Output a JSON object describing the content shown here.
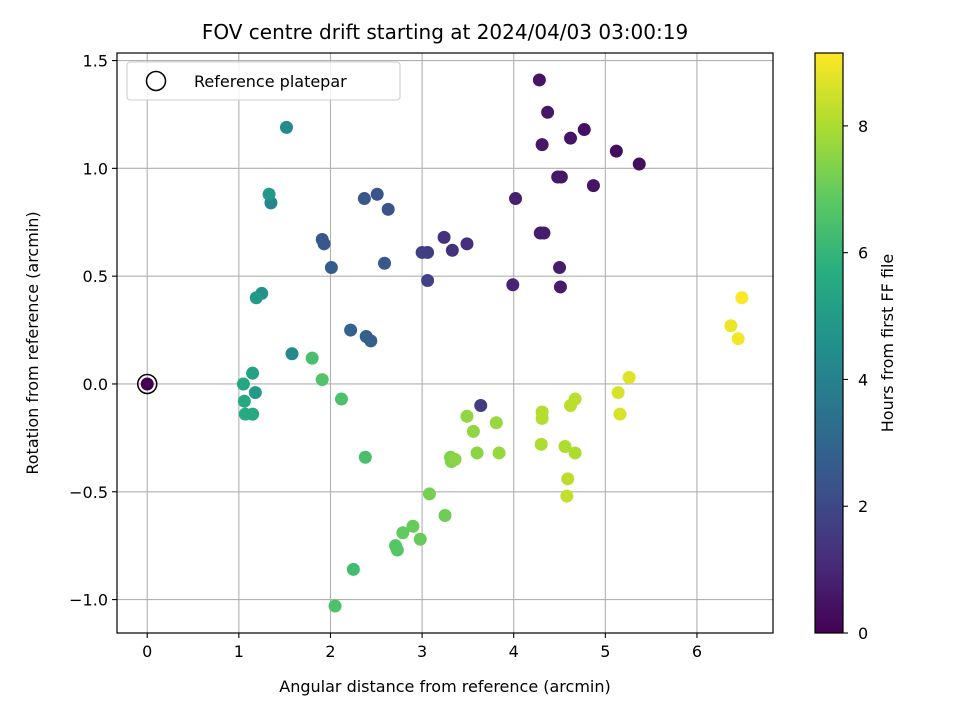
{
  "chart_data": {
    "type": "scatter",
    "title": "FOV centre drift starting at 2024/04/03 03:00:19",
    "xlabel": "Angular distance from reference (arcmin)",
    "ylabel": "Rotation from reference (arcmin)",
    "xlim": [
      -0.33,
      6.83
    ],
    "ylim": [
      -1.155,
      1.535
    ],
    "xticks": [
      0,
      1,
      2,
      3,
      4,
      5,
      6
    ],
    "yticks": [
      -1.0,
      -0.5,
      0.0,
      0.5,
      1.0,
      1.5
    ],
    "xtick_labels": [
      "0",
      "1",
      "2",
      "3",
      "4",
      "5",
      "6"
    ],
    "ytick_labels": [
      "−1.0",
      "−0.5",
      "0.0",
      "0.5",
      "1.0",
      "1.5"
    ],
    "grid": true,
    "colormap": "viridis",
    "colorbar": {
      "label": "Hours from first FF file",
      "min": 0,
      "max": 9.15,
      "ticks": [
        0,
        2,
        4,
        6,
        8
      ],
      "tick_labels": [
        "0",
        "2",
        "4",
        "6",
        "8"
      ]
    },
    "legend": {
      "placement": "upper-left",
      "entries": [
        "Reference platepar"
      ]
    },
    "reference_point": {
      "x": 0.0,
      "y": 0.0
    },
    "points": [
      {
        "x": 4.28,
        "y": 1.41,
        "c": 0.5
      },
      {
        "x": 4.37,
        "y": 1.26,
        "c": 0.6
      },
      {
        "x": 4.31,
        "y": 1.11,
        "c": 0.6
      },
      {
        "x": 4.62,
        "y": 1.14,
        "c": 0.5
      },
      {
        "x": 4.77,
        "y": 1.18,
        "c": 0.4
      },
      {
        "x": 5.12,
        "y": 1.08,
        "c": 0.3
      },
      {
        "x": 5.37,
        "y": 1.02,
        "c": 0.3
      },
      {
        "x": 4.48,
        "y": 0.96,
        "c": 0.6
      },
      {
        "x": 4.52,
        "y": 0.96,
        "c": 0.6
      },
      {
        "x": 4.87,
        "y": 0.92,
        "c": 0.5
      },
      {
        "x": 4.02,
        "y": 0.86,
        "c": 0.8
      },
      {
        "x": 4.29,
        "y": 0.7,
        "c": 0.7
      },
      {
        "x": 4.33,
        "y": 0.7,
        "c": 0.7
      },
      {
        "x": 4.5,
        "y": 0.54,
        "c": 0.7
      },
      {
        "x": 4.51,
        "y": 0.45,
        "c": 0.7
      },
      {
        "x": 3.99,
        "y": 0.46,
        "c": 0.9
      },
      {
        "x": 3.24,
        "y": 0.68,
        "c": 1.3
      },
      {
        "x": 3.33,
        "y": 0.62,
        "c": 1.3
      },
      {
        "x": 3.49,
        "y": 0.65,
        "c": 1.2
      },
      {
        "x": 3.06,
        "y": 0.61,
        "c": 1.6
      },
      {
        "x": 3.0,
        "y": 0.61,
        "c": 1.7
      },
      {
        "x": 3.06,
        "y": 0.48,
        "c": 1.8
      },
      {
        "x": 3.64,
        "y": -0.1,
        "c": 1.6
      },
      {
        "x": 2.51,
        "y": 0.88,
        "c": 2.4
      },
      {
        "x": 2.37,
        "y": 0.86,
        "c": 2.5
      },
      {
        "x": 2.63,
        "y": 0.81,
        "c": 2.3
      },
      {
        "x": 1.91,
        "y": 0.67,
        "c": 2.5
      },
      {
        "x": 1.93,
        "y": 0.65,
        "c": 2.5
      },
      {
        "x": 2.01,
        "y": 0.54,
        "c": 2.6
      },
      {
        "x": 2.59,
        "y": 0.56,
        "c": 2.5
      },
      {
        "x": 2.22,
        "y": 0.25,
        "c": 2.9
      },
      {
        "x": 2.39,
        "y": 0.22,
        "c": 2.8
      },
      {
        "x": 2.44,
        "y": 0.2,
        "c": 2.8
      },
      {
        "x": 1.52,
        "y": 1.19,
        "c": 4.3
      },
      {
        "x": 1.35,
        "y": 0.84,
        "c": 4.2
      },
      {
        "x": 1.33,
        "y": 0.88,
        "c": 4.9
      },
      {
        "x": 1.58,
        "y": 0.14,
        "c": 4.3
      },
      {
        "x": 1.25,
        "y": 0.42,
        "c": 4.6
      },
      {
        "x": 1.19,
        "y": 0.4,
        "c": 4.9
      },
      {
        "x": 1.15,
        "y": 0.05,
        "c": 5.2
      },
      {
        "x": 1.05,
        "y": 0.0,
        "c": 5.4
      },
      {
        "x": 1.18,
        "y": -0.04,
        "c": 4.9
      },
      {
        "x": 1.06,
        "y": -0.08,
        "c": 5.5
      },
      {
        "x": 1.07,
        "y": -0.14,
        "c": 5.6
      },
      {
        "x": 1.15,
        "y": -0.14,
        "c": 5.5
      },
      {
        "x": 1.8,
        "y": 0.12,
        "c": 6.4
      },
      {
        "x": 1.91,
        "y": 0.02,
        "c": 6.6
      },
      {
        "x": 2.12,
        "y": -0.07,
        "c": 6.5
      },
      {
        "x": 2.38,
        "y": -0.34,
        "c": 6.4
      },
      {
        "x": 2.25,
        "y": -0.86,
        "c": 6.3
      },
      {
        "x": 2.05,
        "y": -1.03,
        "c": 6.5
      },
      {
        "x": 2.71,
        "y": -0.75,
        "c": 6.7
      },
      {
        "x": 2.73,
        "y": -0.77,
        "c": 6.7
      },
      {
        "x": 2.79,
        "y": -0.69,
        "c": 6.9
      },
      {
        "x": 2.9,
        "y": -0.66,
        "c": 7.0
      },
      {
        "x": 2.98,
        "y": -0.72,
        "c": 7.0
      },
      {
        "x": 3.08,
        "y": -0.51,
        "c": 7.2
      },
      {
        "x": 3.25,
        "y": -0.61,
        "c": 7.1
      },
      {
        "x": 3.31,
        "y": -0.34,
        "c": 7.4
      },
      {
        "x": 3.32,
        "y": -0.36,
        "c": 7.4
      },
      {
        "x": 3.36,
        "y": -0.35,
        "c": 7.5
      },
      {
        "x": 3.49,
        "y": -0.15,
        "c": 7.6
      },
      {
        "x": 3.56,
        "y": -0.22,
        "c": 7.6
      },
      {
        "x": 3.6,
        "y": -0.32,
        "c": 7.5
      },
      {
        "x": 3.81,
        "y": -0.18,
        "c": 7.7
      },
      {
        "x": 3.84,
        "y": -0.32,
        "c": 7.7
      },
      {
        "x": 4.31,
        "y": -0.13,
        "c": 8.1
      },
      {
        "x": 4.31,
        "y": -0.16,
        "c": 8.1
      },
      {
        "x": 4.3,
        "y": -0.28,
        "c": 8.0
      },
      {
        "x": 4.56,
        "y": -0.29,
        "c": 8.0
      },
      {
        "x": 4.62,
        "y": -0.1,
        "c": 8.2
      },
      {
        "x": 4.67,
        "y": -0.07,
        "c": 8.2
      },
      {
        "x": 4.67,
        "y": -0.32,
        "c": 8.0
      },
      {
        "x": 4.59,
        "y": -0.44,
        "c": 8.2
      },
      {
        "x": 4.58,
        "y": -0.52,
        "c": 8.3
      },
      {
        "x": 5.14,
        "y": -0.04,
        "c": 8.6
      },
      {
        "x": 5.16,
        "y": -0.14,
        "c": 8.6
      },
      {
        "x": 5.26,
        "y": 0.03,
        "c": 8.7
      },
      {
        "x": 6.37,
        "y": 0.27,
        "c": 8.9
      },
      {
        "x": 6.49,
        "y": 0.4,
        "c": 9.1
      },
      {
        "x": 6.45,
        "y": 0.21,
        "c": 9.0
      }
    ]
  }
}
